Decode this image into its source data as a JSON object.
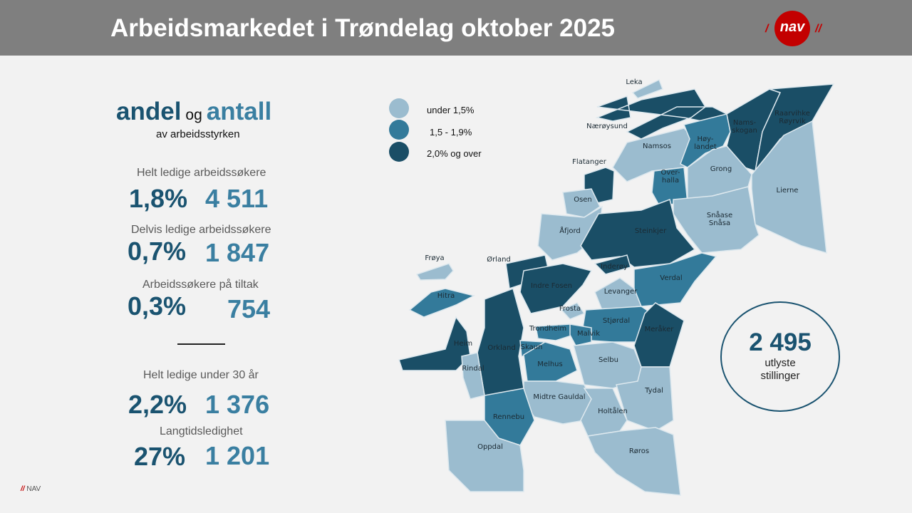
{
  "header": {
    "title": "Arbeidsmarkedet i Trøndelag oktober 2025",
    "logo_text": "nav"
  },
  "intro": {
    "andel": "andel",
    "og": "og",
    "antall": "antall",
    "subtitle": "av arbeidsstyrken"
  },
  "stats": [
    {
      "label": "Helt ledige arbeidssøkere",
      "percent": "1,8%",
      "count": "4 511"
    },
    {
      "label": "Delvis ledige arbeidssøkere",
      "percent": "0,7%",
      "count": "1 847"
    },
    {
      "label": "Arbeidssøkere på tiltak",
      "percent": "0,3%",
      "count": "754"
    },
    {
      "label": "Helt ledige under 30 år",
      "percent": "2,2%",
      "count": "1 376"
    },
    {
      "label": "Langtidsledighet",
      "percent": "27%",
      "count": "1 201"
    }
  ],
  "legend": [
    {
      "label": "under 1,5%",
      "color": "#9bbccf"
    },
    {
      "label": "1,5 - 1,9%",
      "color": "#337a9a"
    },
    {
      "label": "2,0% og over",
      "color": "#1a4e66"
    }
  ],
  "vacancies": {
    "value": "2 495",
    "label1": "utlyste",
    "label2": "stillinger"
  },
  "footer": {
    "slashes": "//",
    "text": "NAV"
  },
  "municipalities": [
    {
      "name": "Leka",
      "class": "low"
    },
    {
      "name": "Nærøysund",
      "class": "high"
    },
    {
      "name": "Namsos",
      "class": "low"
    },
    {
      "name": "Høy-",
      "name2": "landet",
      "class": "mid"
    },
    {
      "name": "Nams-",
      "name2": "skogan",
      "class": "high"
    },
    {
      "name": "Raarvihke",
      "name2": "Røyrvik",
      "class": "high"
    },
    {
      "name": "Flatanger",
      "class": "high"
    },
    {
      "name": "Over-",
      "name2": "halla",
      "class": "mid"
    },
    {
      "name": "Grong",
      "class": "low"
    },
    {
      "name": "Lierne",
      "class": "low"
    },
    {
      "name": "Osen",
      "class": "low"
    },
    {
      "name": "Snåase",
      "name2": "Snåsa",
      "class": "low"
    },
    {
      "name": "Åfjord",
      "class": "low"
    },
    {
      "name": "Steinkjer",
      "class": "high"
    },
    {
      "name": "Frøya",
      "class": "low"
    },
    {
      "name": "Ørland",
      "class": "high"
    },
    {
      "name": "Inderøy",
      "class": "high"
    },
    {
      "name": "Verdal",
      "class": "mid"
    },
    {
      "name": "Indre Fosen",
      "class": "high"
    },
    {
      "name": "Hitra",
      "class": "mid"
    },
    {
      "name": "Levanger",
      "class": "low"
    },
    {
      "name": "Frosta",
      "class": "low"
    },
    {
      "name": "Stjørdal",
      "class": "mid"
    },
    {
      "name": "Meråker",
      "class": "high"
    },
    {
      "name": "Trondheim",
      "class": "mid"
    },
    {
      "name": "Malvik",
      "class": "mid"
    },
    {
      "name": "Heim",
      "class": "high"
    },
    {
      "name": "Orkland",
      "class": "high"
    },
    {
      "name": "Skaun",
      "class": "mid"
    },
    {
      "name": "Melhus",
      "class": "mid"
    },
    {
      "name": "Selbu",
      "class": "low"
    },
    {
      "name": "Rindal",
      "class": "low"
    },
    {
      "name": "Midtre Gauldal",
      "class": "low"
    },
    {
      "name": "Tydal",
      "class": "low"
    },
    {
      "name": "Rennebu",
      "class": "mid"
    },
    {
      "name": "Holtålen",
      "class": "low"
    },
    {
      "name": "Oppdal",
      "class": "low"
    },
    {
      "name": "Røros",
      "class": "low"
    }
  ]
}
